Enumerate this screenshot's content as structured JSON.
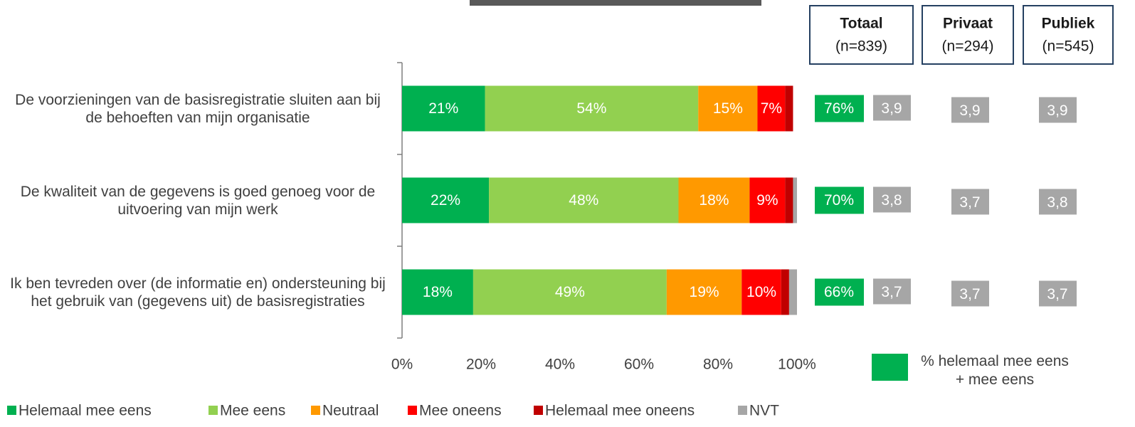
{
  "chart_data": {
    "type": "stacked-bar-horizontal",
    "categories": [
      "De voorzieningen van de basisregistratie sluiten aan bij de behoeften van mijn organisatie",
      "De kwaliteit van de gegevens is goed genoeg voor de uitvoering van mijn werk",
      "Ik ben tevreden over (de informatie en) ondersteuning bij het gebruik van (gegevens uit) de basisregistraties"
    ],
    "series": [
      {
        "name": "Helemaal mee eens",
        "color": "#00b050",
        "values": [
          21,
          22,
          18
        ],
        "value_labels": [
          "21%",
          "22%",
          "18%"
        ]
      },
      {
        "name": "Mee eens",
        "color": "#92d050",
        "values": [
          54,
          48,
          49
        ],
        "value_labels": [
          "54%",
          "48%",
          "49%"
        ]
      },
      {
        "name": "Neutraal",
        "color": "#ff9900",
        "values": [
          15,
          18,
          19
        ],
        "value_labels": [
          "15%",
          "18%",
          "19%"
        ]
      },
      {
        "name": "Mee oneens",
        "color": "#ff0000",
        "values": [
          7,
          9,
          10
        ],
        "value_labels": [
          "7%",
          "9%",
          "10%"
        ]
      },
      {
        "name": "Helemaal mee oneens",
        "color": "#c00000",
        "values": [
          2,
          2,
          2
        ]
      },
      {
        "name": "NVT",
        "color": "#a6a6a6",
        "values": [
          0,
          1,
          2
        ]
      }
    ],
    "xlim": [
      0,
      100
    ],
    "xticks": [
      {
        "value": 0,
        "label": "0%"
      },
      {
        "value": 20,
        "label": "20%"
      },
      {
        "value": 40,
        "label": "40%"
      },
      {
        "value": 60,
        "label": "60%"
      },
      {
        "value": 80,
        "label": "80%"
      },
      {
        "value": 100,
        "label": "100%"
      }
    ],
    "summary": {
      "agree": [
        "76%",
        "70%",
        "66%"
      ],
      "agree_color": "#00b050",
      "agree_label": "% helemaal mee eens + mee eens",
      "columns": [
        {
          "title": "Totaal",
          "n": "(n=839)",
          "scores": [
            "3,9",
            "3,8",
            "3,7"
          ]
        },
        {
          "title": "Privaat",
          "n": "(n=294)",
          "scores": [
            "3,9",
            "3,7",
            "3,7"
          ]
        },
        {
          "title": "Publiek",
          "n": "(n=545)",
          "scores": [
            "3,9",
            "3,8",
            "3,7"
          ]
        }
      ]
    }
  }
}
